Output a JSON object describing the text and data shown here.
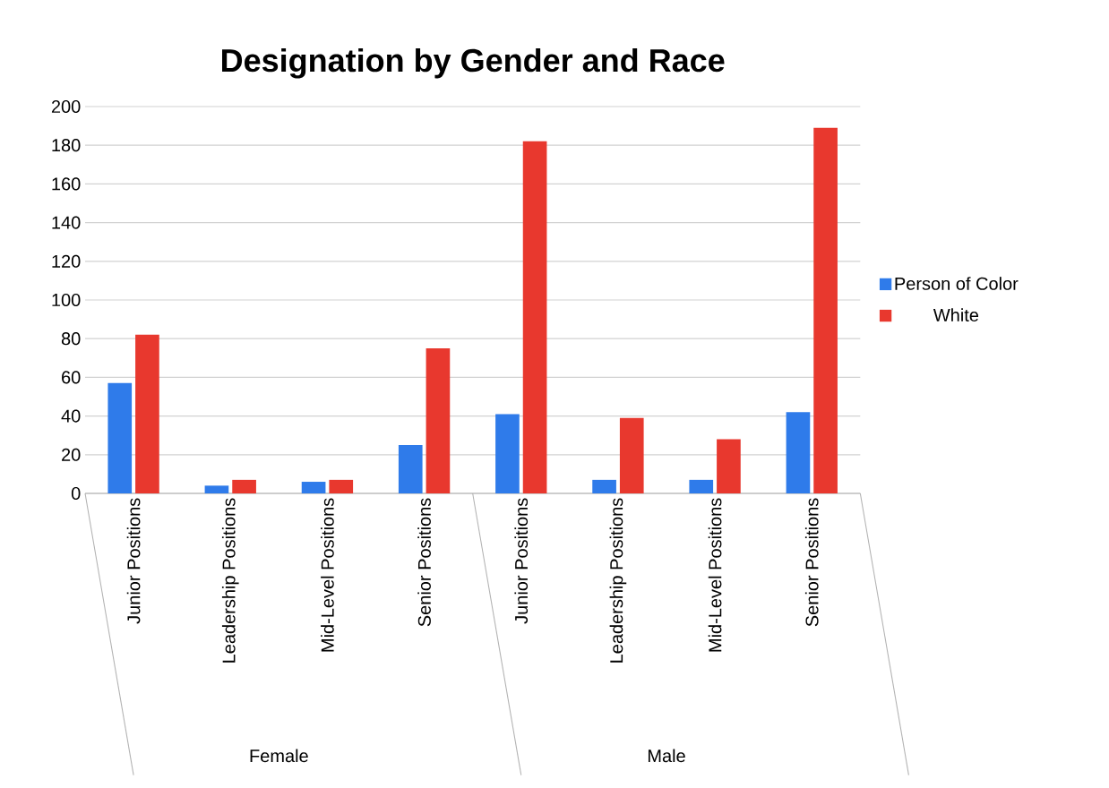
{
  "chart_data": {
    "type": "bar",
    "title": "Designation by Gender and Race",
    "categories": [
      "Junior Positions",
      "Leadership Positions",
      "Mid-Level Positions",
      "Senior Positions",
      "Junior Positions",
      "Leadership Positions",
      "Mid-Level Positions",
      "Senior Positions"
    ],
    "series": [
      {
        "name": "Person of Color",
        "color": "#2f7bea",
        "values": [
          57,
          4,
          6,
          25,
          41,
          7,
          7,
          42
        ]
      },
      {
        "name": "White",
        "color": "#e8382e",
        "values": [
          82,
          7,
          7,
          75,
          182,
          39,
          28,
          189
        ]
      }
    ],
    "annotations": [
      "Female",
      "Male"
    ],
    "ylim": [
      0,
      200
    ],
    "yticks": [
      0,
      20,
      40,
      60,
      80,
      100,
      120,
      140,
      160,
      180,
      200
    ],
    "grid": "y",
    "legend": "right"
  }
}
